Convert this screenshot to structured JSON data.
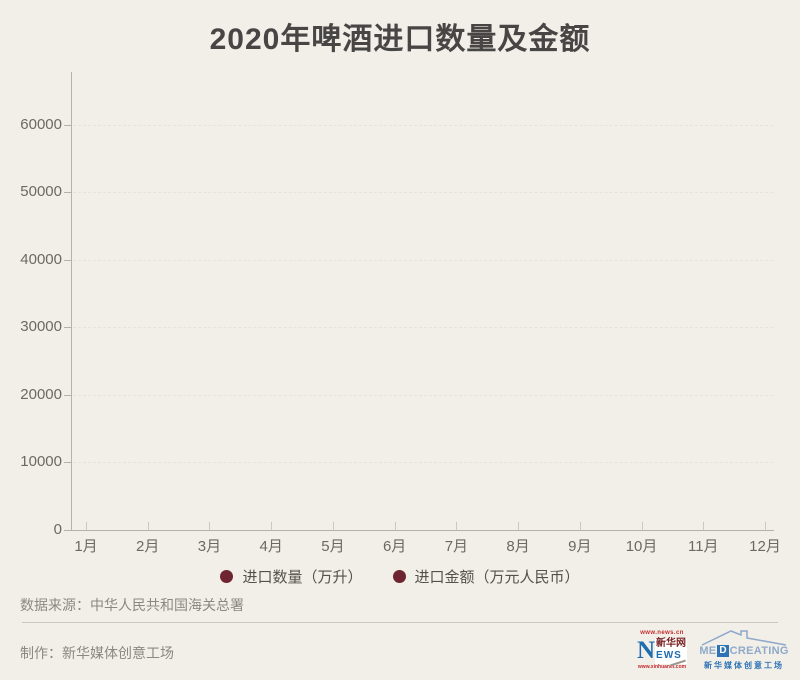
{
  "title": "2020年啤酒进口数量及金额",
  "chart_data": {
    "type": "line",
    "title": "2020年啤酒进口数量及金额",
    "categories": [
      "1月",
      "2月",
      "3月",
      "4月",
      "5月",
      "6月",
      "7月",
      "8月",
      "9月",
      "10月",
      "11月",
      "12月"
    ],
    "series": [
      {
        "name": "进口数量（万升）",
        "color": "#6e2531",
        "values": []
      },
      {
        "name": "进口金额（万元人民币）",
        "color": "#6e2531",
        "values": []
      }
    ],
    "yticks": [
      0,
      10000,
      20000,
      30000,
      40000,
      50000,
      60000
    ],
    "ylim": [
      0,
      67800
    ],
    "xlabel": "",
    "ylabel": "",
    "grid": "horizontal-dashed",
    "legend_position": "bottom",
    "plot_empty": true
  },
  "source": "数据来源：中华人民共和国海关总署",
  "credit": "制作：新华媒体创意工场",
  "logos": {
    "xinhua": {
      "url_top": "www.news.cn",
      "n": "N",
      "cn": "新华网",
      "ews": "EWS",
      "url_bottom": "www.xinhuanet.com",
      "blue": "#1f6cb0",
      "red": "#c5292c"
    },
    "medcreating": {
      "me": "ME",
      "d": "D",
      "rest": "CREATING",
      "cn": "新华媒体创意工场",
      "blue": "#2e74b5",
      "light_blue": "#8fa9c9"
    }
  },
  "colors": {
    "background": "#f2efe9",
    "axis": "#b7b1a9",
    "gridline": "#e7e2db",
    "tick_label": "#6c6862",
    "legend_dot": "#6e2531"
  }
}
